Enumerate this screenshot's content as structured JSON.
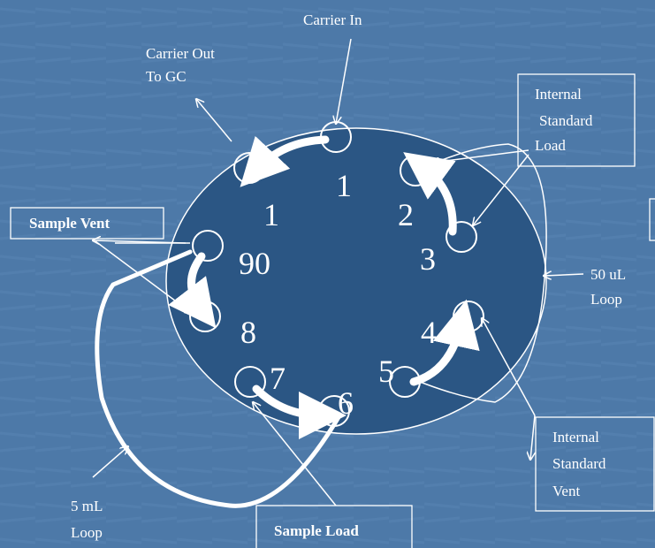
{
  "labels": {
    "carrier_in": "Carrier In",
    "carrier_out": [
      "Carrier Out",
      "To GC"
    ],
    "internal_standard_load": [
      "Internal",
      "Standard",
      "Load"
    ],
    "sample_vent": "Sample Vent",
    "loop_50ul": [
      "50 uL",
      "Loop"
    ],
    "loop_5ml": [
      "5 mL",
      "Loop"
    ],
    "internal_standard_vent": [
      "Internal",
      "Standard",
      "Vent"
    ],
    "sample_load": "Sample Load"
  },
  "ports": [
    "1",
    "1",
    "2",
    "3",
    "90",
    "8",
    "4",
    "5",
    "7",
    "6"
  ]
}
